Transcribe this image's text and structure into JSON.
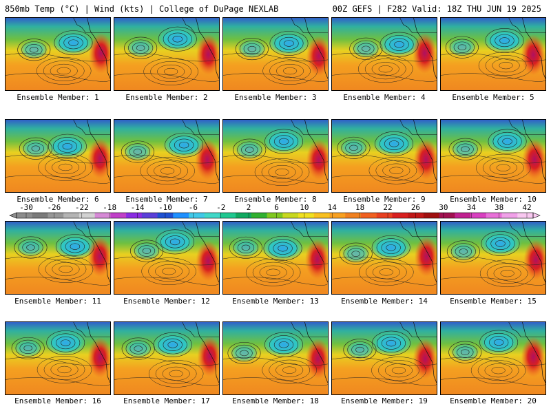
{
  "header": {
    "left": "850mb Temp (°C) | Wind (kts) | College of DuPage NEXLAB",
    "right": "00Z GEFS | F282 Valid: 18Z THU JUN 19 2025"
  },
  "members": [
    "Ensemble Member: 1",
    "Ensemble Member: 2",
    "Ensemble Member: 3",
    "Ensemble Member: 4",
    "Ensemble Member: 5",
    "Ensemble Member: 6",
    "Ensemble Member: 7",
    "Ensemble Member: 8",
    "Ensemble Member: 9",
    "Ensemble Member: 10",
    "Ensemble Member: 11",
    "Ensemble Member: 12",
    "Ensemble Member: 13",
    "Ensemble Member: 14",
    "Ensemble Member: 15",
    "Ensemble Member: 16",
    "Ensemble Member: 17",
    "Ensemble Member: 18",
    "Ensemble Member: 19",
    "Ensemble Member: 20"
  ],
  "colorbar": {
    "labels": [
      "-30",
      "-26",
      "-22",
      "-18",
      "-14",
      "-10",
      "-6",
      "-2",
      "2",
      "6",
      "10",
      "14",
      "18",
      "22",
      "26",
      "30",
      "34",
      "38",
      "42"
    ],
    "colors": [
      "#8c8c8c",
      "#7a7a7a",
      "#969696",
      "#b4b4b4",
      "#d2d2d2",
      "#d68ad6",
      "#c040c8",
      "#8a2be2",
      "#5a3fd8",
      "#1e50d2",
      "#1e90ff",
      "#40c8e8",
      "#40d8c8",
      "#20c890",
      "#10a860",
      "#30b030",
      "#80c820",
      "#c8d820",
      "#f0e020",
      "#f8c020",
      "#f8a020",
      "#f08020",
      "#f06020",
      "#e84020",
      "#d82020",
      "#c01818",
      "#a01010",
      "#a01050",
      "#c02090",
      "#d840c0",
      "#e870d8",
      "#f0a0e8",
      "#f8c8f0"
    ]
  }
}
